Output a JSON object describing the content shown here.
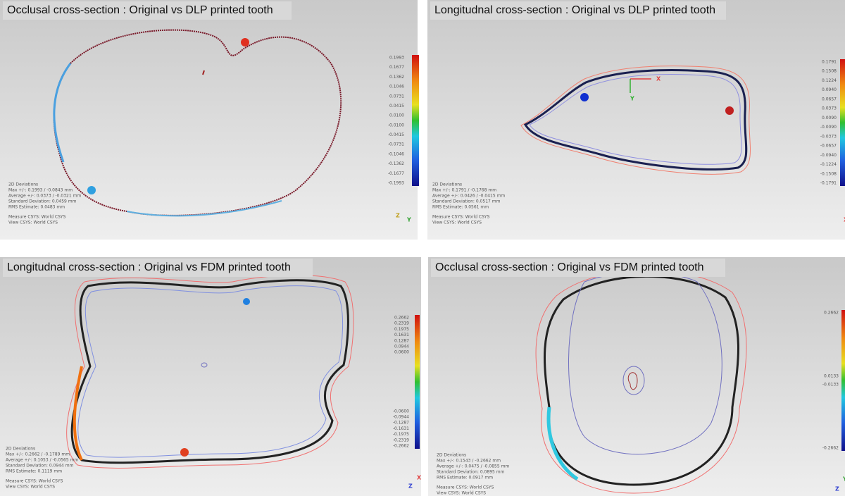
{
  "panels": [
    {
      "title": "Occlusal cross-section : Original vs DLP printed tooth",
      "scale": [
        "0.1993",
        "0.1677",
        "0.1362",
        "0.1046",
        "0.0731",
        "0.0415",
        "0.0100",
        "-0.0100",
        "-0.0415",
        "-0.0731",
        "-0.1046",
        "-0.1362",
        "-0.1677",
        "-0.1993"
      ],
      "stats": [
        "2D Deviations",
        "Max +/-: 0.1993 / -0.0843 mm",
        "Average +/-: 0.0373 / -0.0321 mm",
        "Standard Deviation: 0.0459 mm",
        "RMS Estimate: 0.0483 mm"
      ],
      "csys": [
        "Measure CSYS: World CSYS",
        "View CSYS: World CSYS"
      ],
      "axes": [
        "Z",
        "Y"
      ]
    },
    {
      "title": "Longitudnal cross-section : Original vs DLP printed tooth",
      "scale": [
        "0.1791",
        "0.1508",
        "0.1224",
        "0.0940",
        "0.0657",
        "0.0373",
        "0.0090",
        "-0.0090",
        "-0.0373",
        "-0.0657",
        "-0.0940",
        "-0.1224",
        "-0.1508",
        "-0.1791"
      ],
      "stats": [
        "2D Deviations",
        "Max +/-: 0.1791 / -0.1768 mm",
        "Average +/-: 0.0426 / -0.0415 mm",
        "Standard Deviation: 0.0517 mm",
        "RMS Estimate: 0.0561 mm"
      ],
      "csys": [
        "Measure CSYS: World CSYS",
        "View CSYS: World CSYS"
      ],
      "axes": [
        "X",
        "Y",
        "X"
      ]
    },
    {
      "title": "Longitudnal cross-section : Original vs FDM printed tooth",
      "scale": [
        "0.2662",
        "0.2319",
        "0.1975",
        "0.1631",
        "0.1287",
        "0.0944",
        "0.0600",
        "-0.0600",
        "-0.0944",
        "-0.1287",
        "-0.1631",
        "-0.1975",
        "-0.2319",
        "-0.2662"
      ],
      "stats": [
        "2D Deviations",
        "Max +/-: 0.2662 / -0.1789 mm",
        "Average +/-: 0.1053 / -0.0565 mm",
        "Standard Deviation: 0.0944 mm",
        "RMS Estimate: 0.1119 mm"
      ],
      "csys": [
        "Measure CSYS: World CSYS",
        "View CSYS: World CSYS"
      ],
      "axes": [
        "X",
        "Z"
      ]
    },
    {
      "title": "Occlusal cross-section : Original vs FDM printed tooth",
      "scale": [
        "0.2662",
        "0.0133",
        "-0.0133",
        "-0.2662"
      ],
      "stats": [
        "2D Deviations",
        "Max +/-: 0.1543 / -0.2662 mm",
        "Average +/-: 0.0475 / -0.0855 mm",
        "Standard Deviation: 0.0895 mm",
        "RMS Estimate: 0.0917 mm"
      ],
      "csys": [
        "Measure CSYS: World CSYS",
        "View CSYS: World CSYS"
      ],
      "axes": [
        "Y",
        "Z"
      ]
    }
  ]
}
